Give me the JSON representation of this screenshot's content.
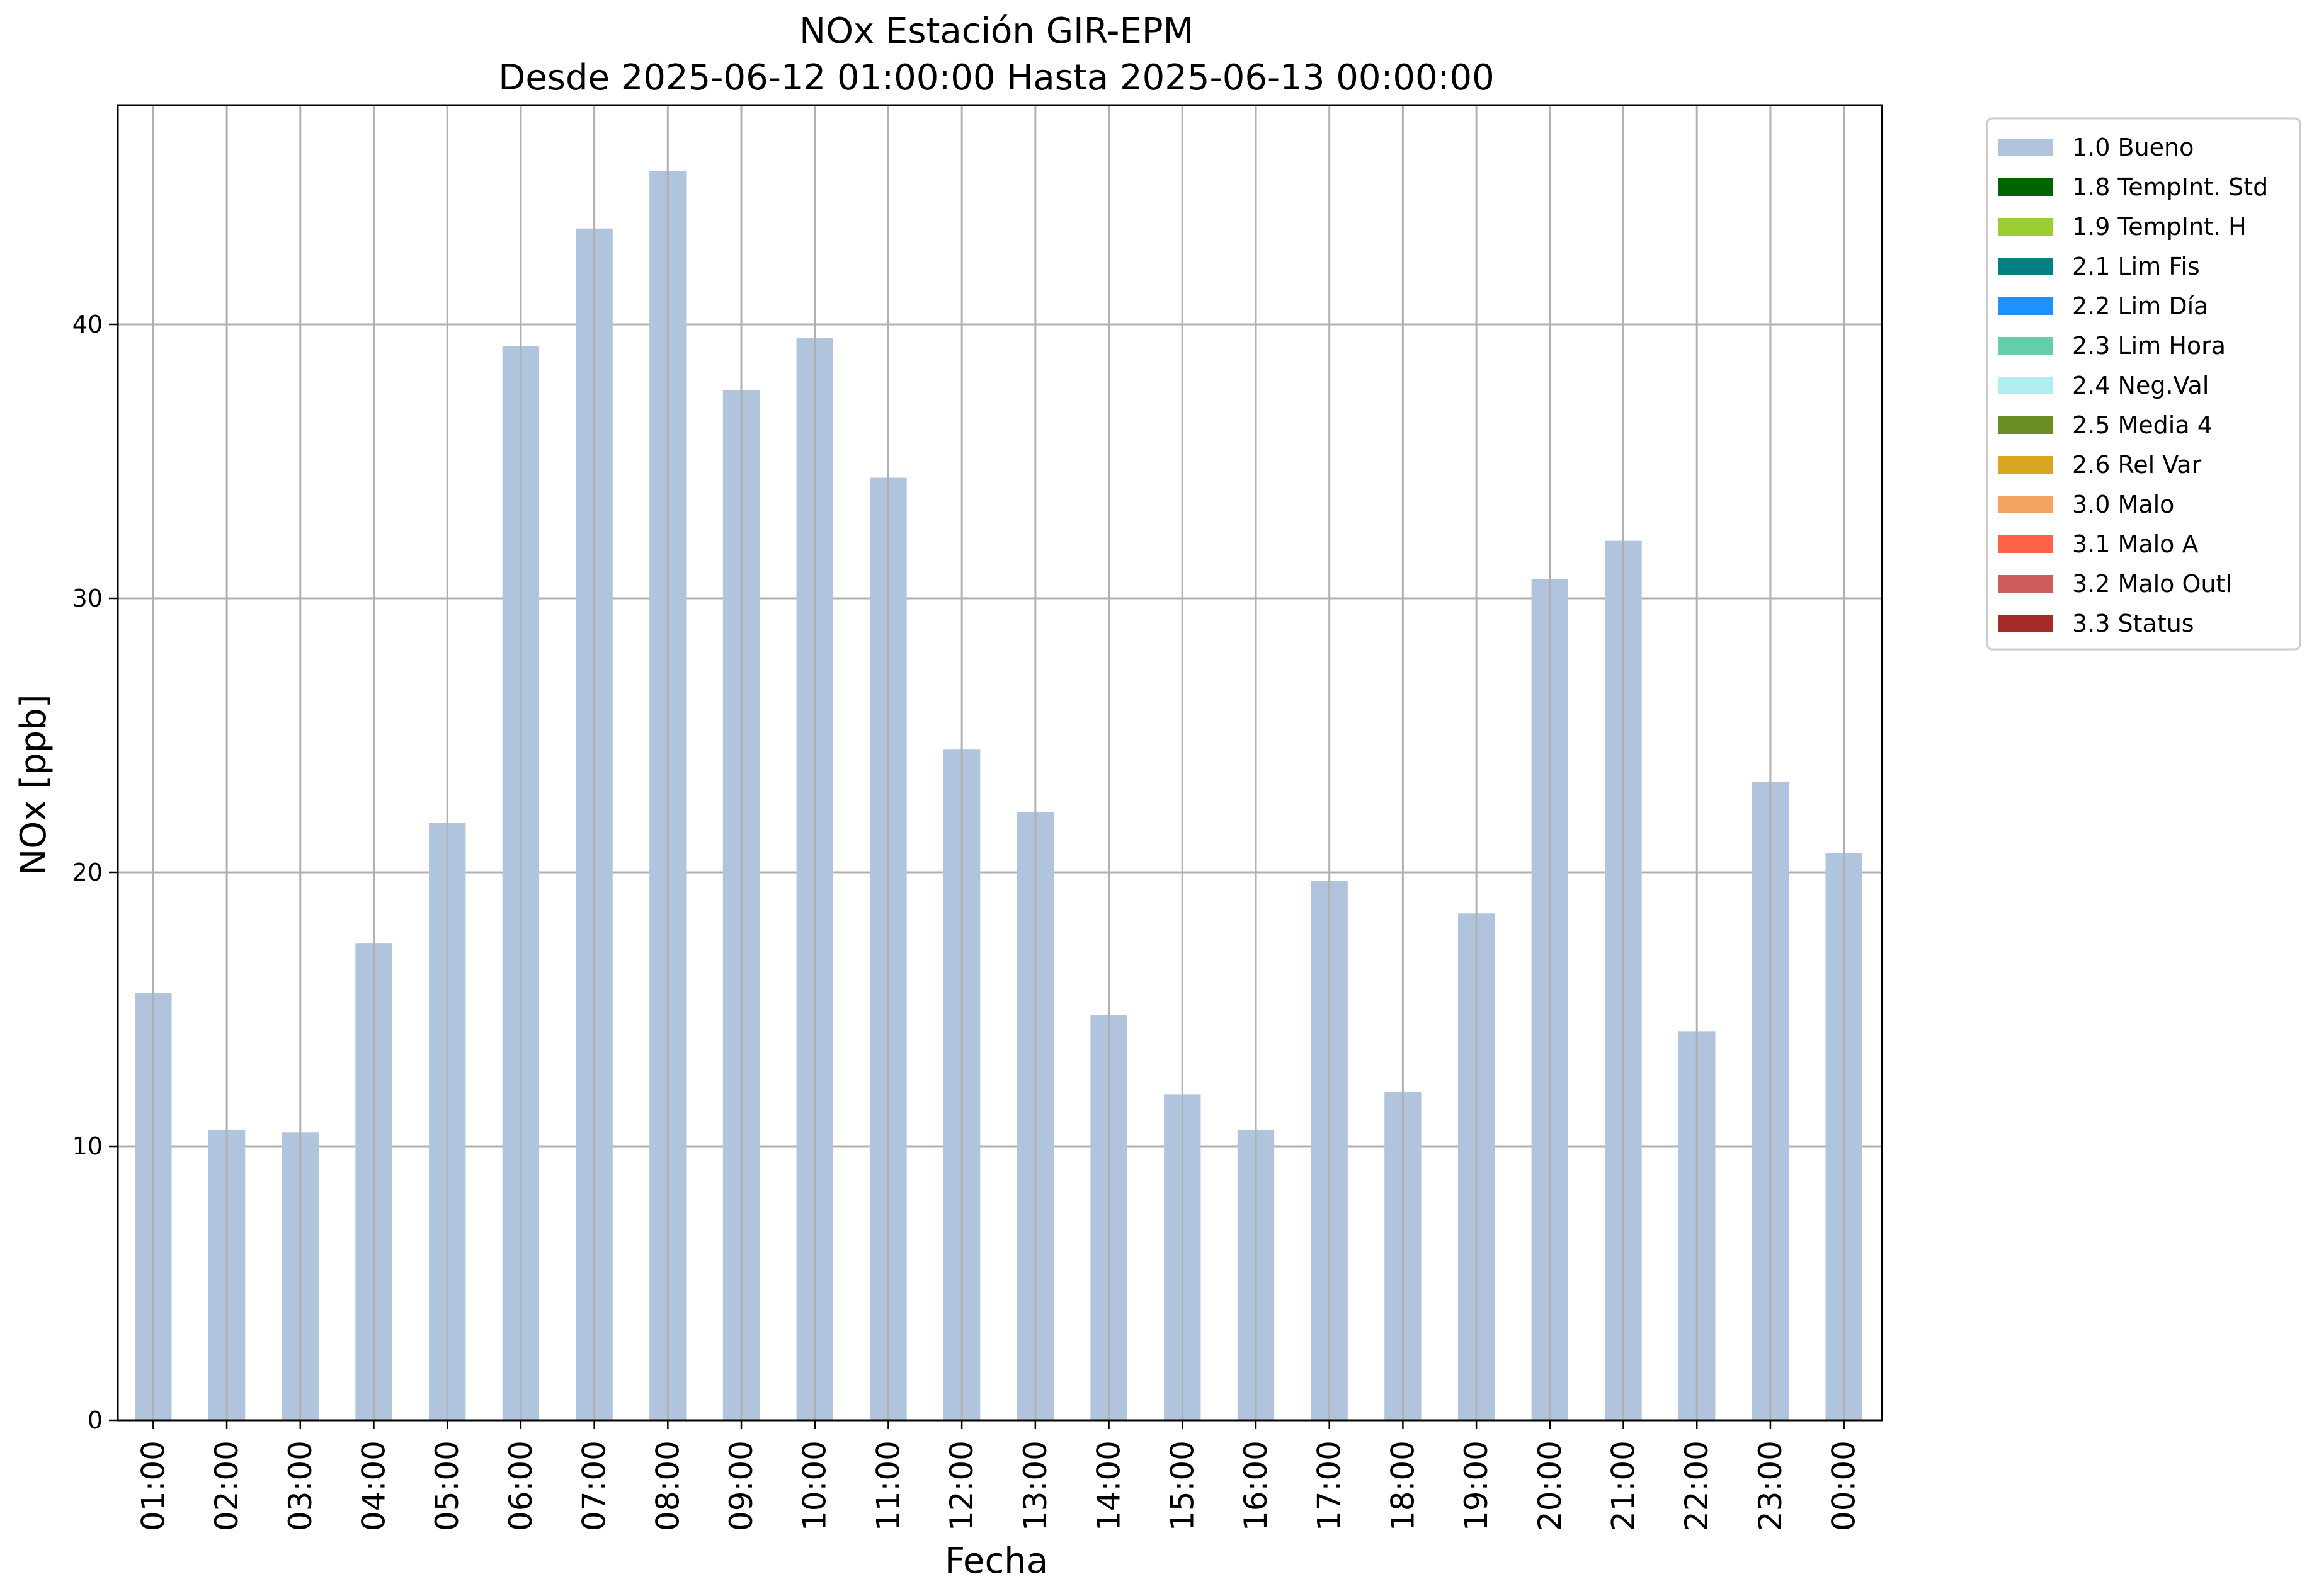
{
  "chart_data": {
    "type": "bar",
    "title": "NOx Estación GIR-EPM",
    "subtitle": "Desde 2025-06-12 01:00:00 Hasta 2025-06-13 00:00:00",
    "xlabel": "Fecha",
    "ylabel": "NOx [ppb]",
    "ylim": [
      0,
      48
    ],
    "yticks": [
      0,
      10,
      20,
      30,
      40
    ],
    "grid": true,
    "legend_position": "outside-top-right",
    "categories": [
      "01:00",
      "02:00",
      "03:00",
      "04:00",
      "05:00",
      "06:00",
      "07:00",
      "08:00",
      "09:00",
      "10:00",
      "11:00",
      "12:00",
      "13:00",
      "14:00",
      "15:00",
      "16:00",
      "17:00",
      "18:00",
      "19:00",
      "20:00",
      "21:00",
      "22:00",
      "23:00",
      "00:00"
    ],
    "series": [
      {
        "name": "1.0 Bueno",
        "color": "#b0c4de",
        "values": [
          15.6,
          10.6,
          10.5,
          17.4,
          21.8,
          39.2,
          43.5,
          45.6,
          37.6,
          39.5,
          34.4,
          24.5,
          22.2,
          14.8,
          11.9,
          10.6,
          19.7,
          12.0,
          18.5,
          30.7,
          32.1,
          14.2,
          23.3,
          20.7
        ]
      }
    ],
    "legend": [
      {
        "label": "1.0 Bueno",
        "color": "#b0c4de"
      },
      {
        "label": "1.8 TempInt. Std",
        "color": "#006400"
      },
      {
        "label": "1.9 TempInt. H",
        "color": "#9acd32"
      },
      {
        "label": "2.1 Lim Fis",
        "color": "#008080"
      },
      {
        "label": "2.2 Lim Día",
        "color": "#1e90ff"
      },
      {
        "label": "2.3 Lim Hora",
        "color": "#66cdaa"
      },
      {
        "label": "2.4 Neg.Val",
        "color": "#afeeee"
      },
      {
        "label": "2.5 Media 4",
        "color": "#6b8e23"
      },
      {
        "label": "2.6 Rel Var",
        "color": "#daa520"
      },
      {
        "label": "3.0 Malo",
        "color": "#f4a460"
      },
      {
        "label": "3.1 Malo A",
        "color": "#ff6347"
      },
      {
        "label": "3.2 Malo Outl",
        "color": "#cd5c5c"
      },
      {
        "label": "3.3 Status",
        "color": "#a52a2a"
      }
    ]
  }
}
